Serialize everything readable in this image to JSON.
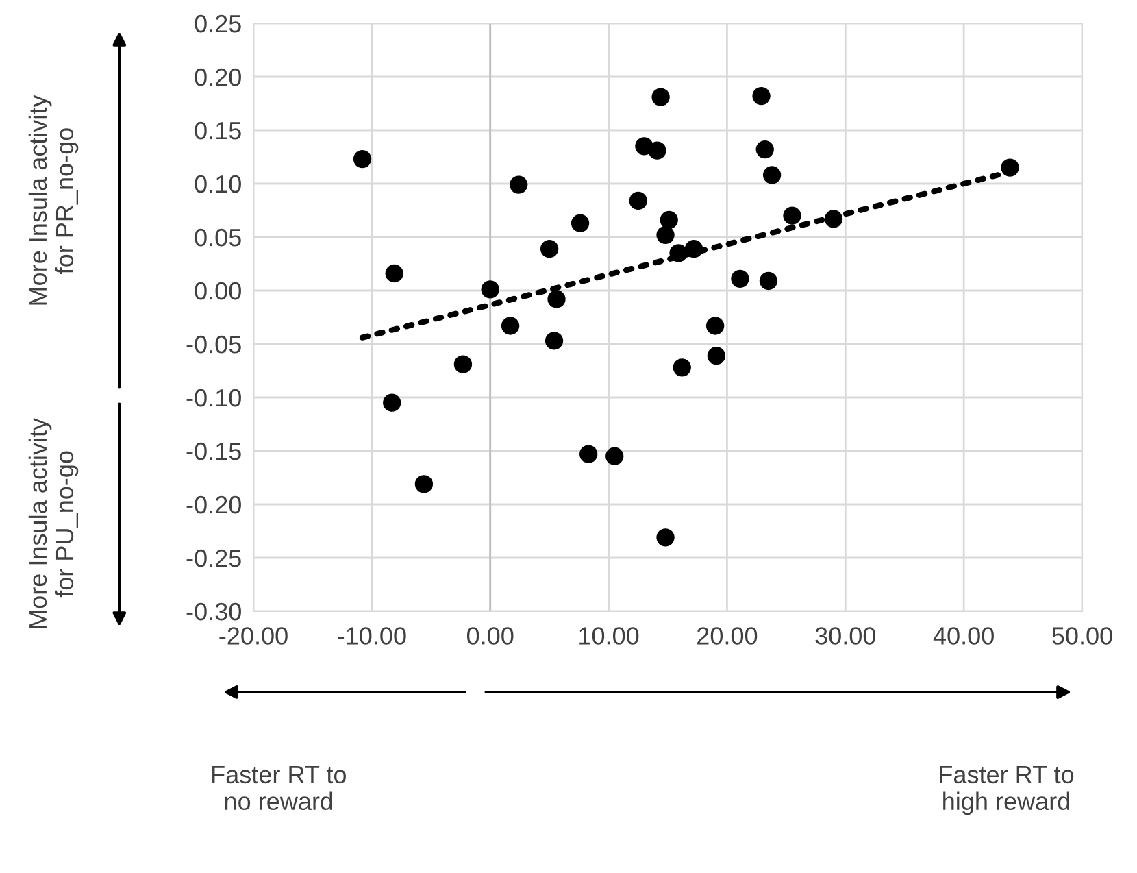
{
  "chart_data": {
    "type": "scatter",
    "x": [
      -10.8,
      -8.1,
      0.0,
      2.4,
      5.0,
      7.6,
      5.6,
      1.7,
      5.4,
      -2.3,
      -8.3,
      -5.6,
      8.3,
      10.5,
      14.8,
      16.2,
      19.0,
      19.1,
      21.1,
      23.5,
      14.4,
      22.9,
      13.0,
      14.1,
      23.2,
      23.8,
      12.5,
      15.1,
      14.8,
      15.9,
      17.2,
      25.5,
      29.0,
      43.9
    ],
    "series": [
      {
        "color": "#000000",
        "marker": "circle",
        "values": [
          0.123,
          0.016,
          0.001,
          0.099,
          0.039,
          0.063,
          -0.008,
          -0.033,
          -0.047,
          -0.069,
          -0.105,
          -0.181,
          -0.153,
          -0.155,
          -0.231,
          -0.072,
          -0.033,
          -0.061,
          0.011,
          0.009,
          0.181,
          0.182,
          0.135,
          0.131,
          0.132,
          0.108,
          0.084,
          0.066,
          0.052,
          0.035,
          0.039,
          0.07,
          0.067,
          0.115
        ]
      },
      {
        "type": "line",
        "color": "#000000",
        "line_style": "dotted",
        "x": [
          -10.8,
          43.9
        ],
        "values": [
          -0.044,
          0.111
        ]
      }
    ],
    "xlim": [
      -20,
      50
    ],
    "xticks": [
      {
        "value": -20,
        "label": "-20.00"
      },
      {
        "value": -10,
        "label": "-10.00"
      },
      {
        "value": 0,
        "label": "0.00"
      },
      {
        "value": 10,
        "label": "10.00"
      },
      {
        "value": 20,
        "label": "20.00"
      },
      {
        "value": 30,
        "label": "30.00"
      },
      {
        "value": 40,
        "label": "40.00"
      },
      {
        "value": 50,
        "label": "50.00"
      }
    ],
    "ylim": [
      -0.3,
      0.25
    ],
    "yticks": [
      {
        "value": -0.3,
        "label": "-0.30"
      },
      {
        "value": -0.25,
        "label": "-0.25"
      },
      {
        "value": -0.2,
        "label": "-0.20"
      },
      {
        "value": -0.15,
        "label": "-0.15"
      },
      {
        "value": -0.1,
        "label": "-0.10"
      },
      {
        "value": -0.05,
        "label": "-0.05"
      },
      {
        "value": 0,
        "label": "0.00"
      },
      {
        "value": 0.05,
        "label": "0.05"
      },
      {
        "value": 0.1,
        "label": "0.10"
      },
      {
        "value": 0.15,
        "label": "0.15"
      },
      {
        "value": 0.2,
        "label": "0.20"
      },
      {
        "value": 0.25,
        "label": "0.25"
      }
    ],
    "grid": true,
    "annotations": [
      "More Insula activity\nfor PR_no-go",
      "More Insula activity\nfor PU_no-go",
      "Faster RT to\nno reward",
      "Faster RT to\nhigh reward"
    ]
  }
}
